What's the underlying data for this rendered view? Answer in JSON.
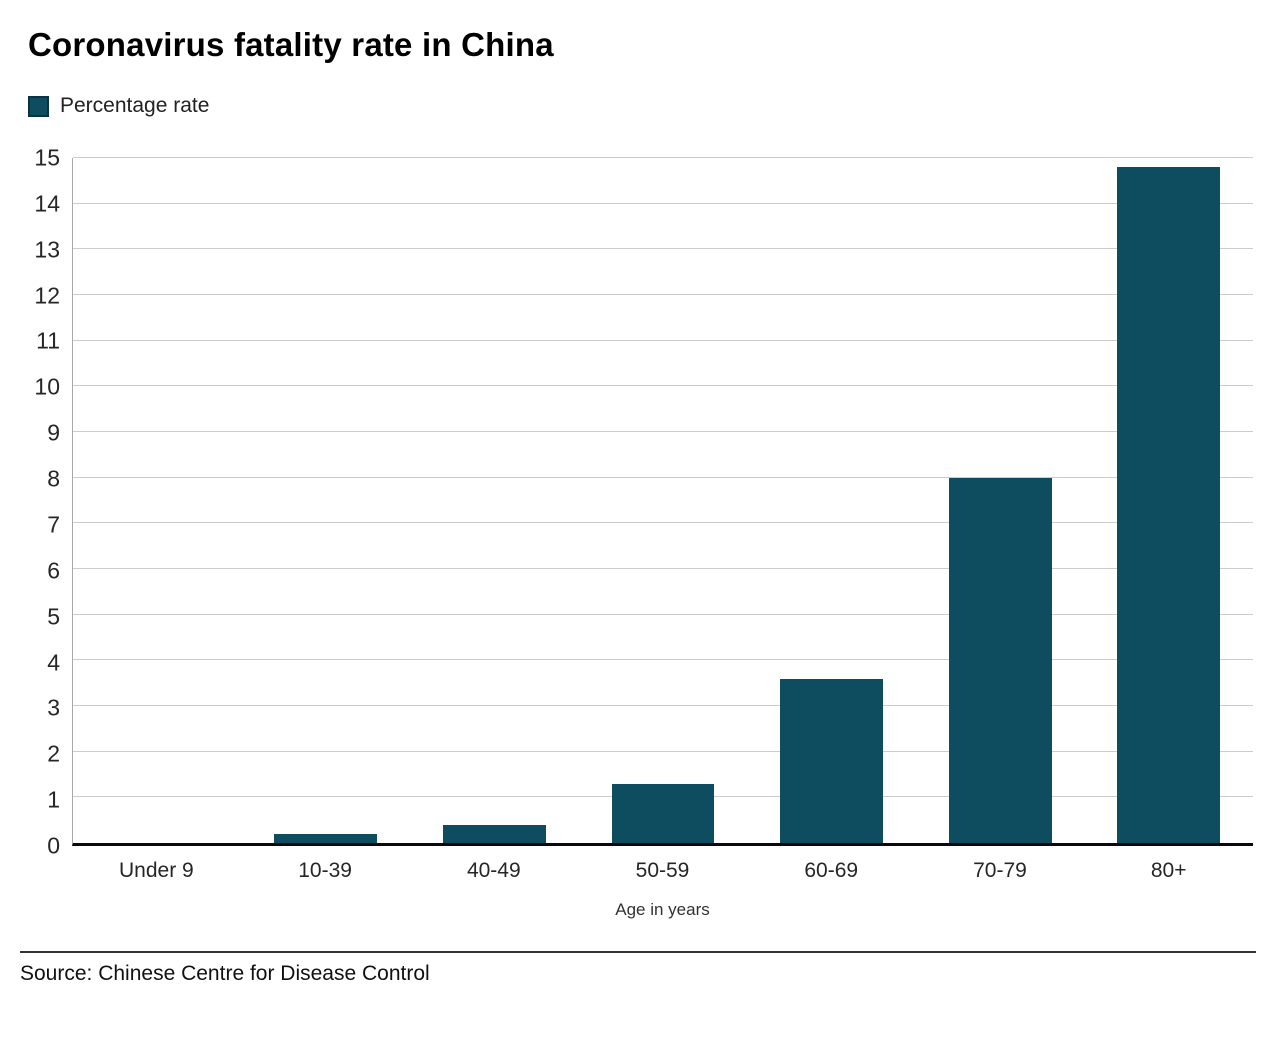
{
  "title": "Coronavirus fatality rate in China",
  "legend": {
    "label": "Percentage rate",
    "swatch_color": "#0d4d5f"
  },
  "chart_data": {
    "type": "bar",
    "categories": [
      "Under 9",
      "10-39",
      "40-49",
      "50-59",
      "60-69",
      "70-79",
      "80+"
    ],
    "values": [
      0,
      0.2,
      0.4,
      1.3,
      3.6,
      8,
      14.8
    ],
    "series_name": "Percentage rate",
    "title": "Coronavirus fatality rate in China",
    "xlabel": "Age in years",
    "ylabel": "",
    "ylim": [
      0,
      15
    ],
    "y_ticks": [
      0,
      1,
      2,
      3,
      4,
      5,
      6,
      7,
      8,
      9,
      10,
      11,
      12,
      13,
      14,
      15
    ],
    "bar_color": "#0d4d5f",
    "grid": true,
    "gridline_color": "#cccccc",
    "legend_position": "top-left"
  },
  "footer": {
    "source": "Source: Chinese Centre for Disease Control"
  }
}
